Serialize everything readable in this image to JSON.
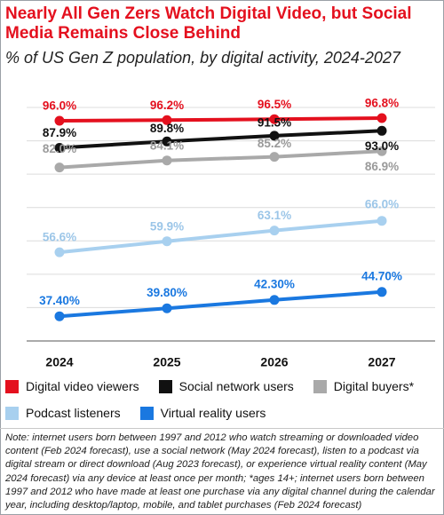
{
  "title": "Nearly All Gen Zers Watch Digital Video, but Social Media Remains Close Behind",
  "subtitle": "% of US Gen Z population, by digital activity, 2024-2027",
  "chart_data": {
    "type": "line",
    "x": [
      "2024",
      "2025",
      "2026",
      "2027"
    ],
    "ylim": [
      30,
      100
    ],
    "grid": true,
    "legend_position": "bottom",
    "series": [
      {
        "name": "Digital video viewers",
        "color": "#e4101e",
        "values": [
          96.0,
          96.2,
          96.5,
          96.8
        ],
        "labels": [
          "96.0%",
          "96.2%",
          "96.5%",
          "96.8%"
        ],
        "label_color": "#e4101e"
      },
      {
        "name": "Social network users",
        "color": "#111111",
        "values": [
          87.9,
          89.8,
          91.5,
          93.0
        ],
        "labels": [
          "87.9%",
          "89.8%",
          "91.5%",
          "93.0%"
        ],
        "label_color": "#111111"
      },
      {
        "name": "Digital buyers*",
        "color": "#a9a9a9",
        "values": [
          82.0,
          84.1,
          85.2,
          86.9
        ],
        "labels": [
          "82.0%",
          "84.1%",
          "85.2%",
          "86.9%"
        ],
        "label_color": "#9a9a9a"
      },
      {
        "name": "Podcast listeners",
        "color": "#a8d0ef",
        "values": [
          56.6,
          59.9,
          63.1,
          66.0
        ],
        "labels": [
          "56.6%",
          "59.9%",
          "63.1%",
          "66.0%"
        ],
        "label_color": "#9cc6e8"
      },
      {
        "name": "Virtual reality users",
        "color": "#1a78e0",
        "values": [
          37.4,
          39.8,
          42.3,
          44.7
        ],
        "labels": [
          "37.40%",
          "39.80%",
          "42.30%",
          "44.70%"
        ],
        "label_color": "#1a78e0"
      }
    ]
  },
  "note": "Note: internet users born between 1997 and 2012 who watch streaming or downloaded video content (Feb 2024 forecast), use a social network (May 2024 forecast), listen to a podcast via digital stream or direct download (Aug 2023 forecast), or experience virtual reality content (May 2024 forecast) via any device at least once per month; *ages 14+; internet users born between 1997 and 2012 who have made at least one purchase via any digital channel during the calendar year, including desktop/laptop, mobile, and tablet purchases (Feb 2024 forecast)"
}
